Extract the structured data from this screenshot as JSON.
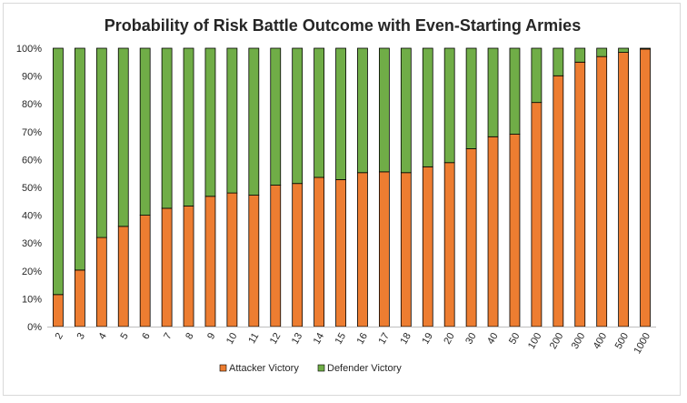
{
  "chart_data": {
    "type": "bar",
    "stacked": true,
    "title": "Probability of Risk Battle Outcome with Even-Starting Armies",
    "xlabel": "",
    "ylabel": "",
    "ylim": [
      0,
      100
    ],
    "y_ticks": [
      "0%",
      "10%",
      "20%",
      "30%",
      "40%",
      "50%",
      "60%",
      "70%",
      "80%",
      "90%",
      "100%"
    ],
    "grid": false,
    "legend_position": "bottom",
    "categories": [
      "2",
      "3",
      "4",
      "5",
      "6",
      "7",
      "8",
      "9",
      "10",
      "11",
      "12",
      "13",
      "14",
      "15",
      "16",
      "17",
      "18",
      "19",
      "20",
      "30",
      "40",
      "50",
      "100",
      "200",
      "300",
      "400",
      "500",
      "1000"
    ],
    "series": [
      {
        "name": "Attacker Victory",
        "color": "#ed7d31",
        "values": [
          11.5,
          20.3,
          32.0,
          36.0,
          40.0,
          42.5,
          43.3,
          46.8,
          48.0,
          47.2,
          50.8,
          51.4,
          53.6,
          52.8,
          55.3,
          55.6,
          55.3,
          57.4,
          58.9,
          63.9,
          68.2,
          69.1,
          80.5,
          90.1,
          95.0,
          97.0,
          98.5,
          99.7
        ]
      },
      {
        "name": "Defender Victory",
        "color": "#70ad47",
        "values": [
          88.5,
          79.7,
          68.0,
          64.0,
          60.0,
          57.5,
          56.7,
          53.2,
          52.0,
          52.8,
          49.2,
          48.6,
          46.4,
          47.2,
          44.7,
          44.4,
          44.7,
          42.6,
          41.1,
          36.1,
          31.8,
          30.9,
          19.5,
          9.9,
          5.0,
          3.0,
          1.5,
          0.3
        ]
      }
    ]
  }
}
